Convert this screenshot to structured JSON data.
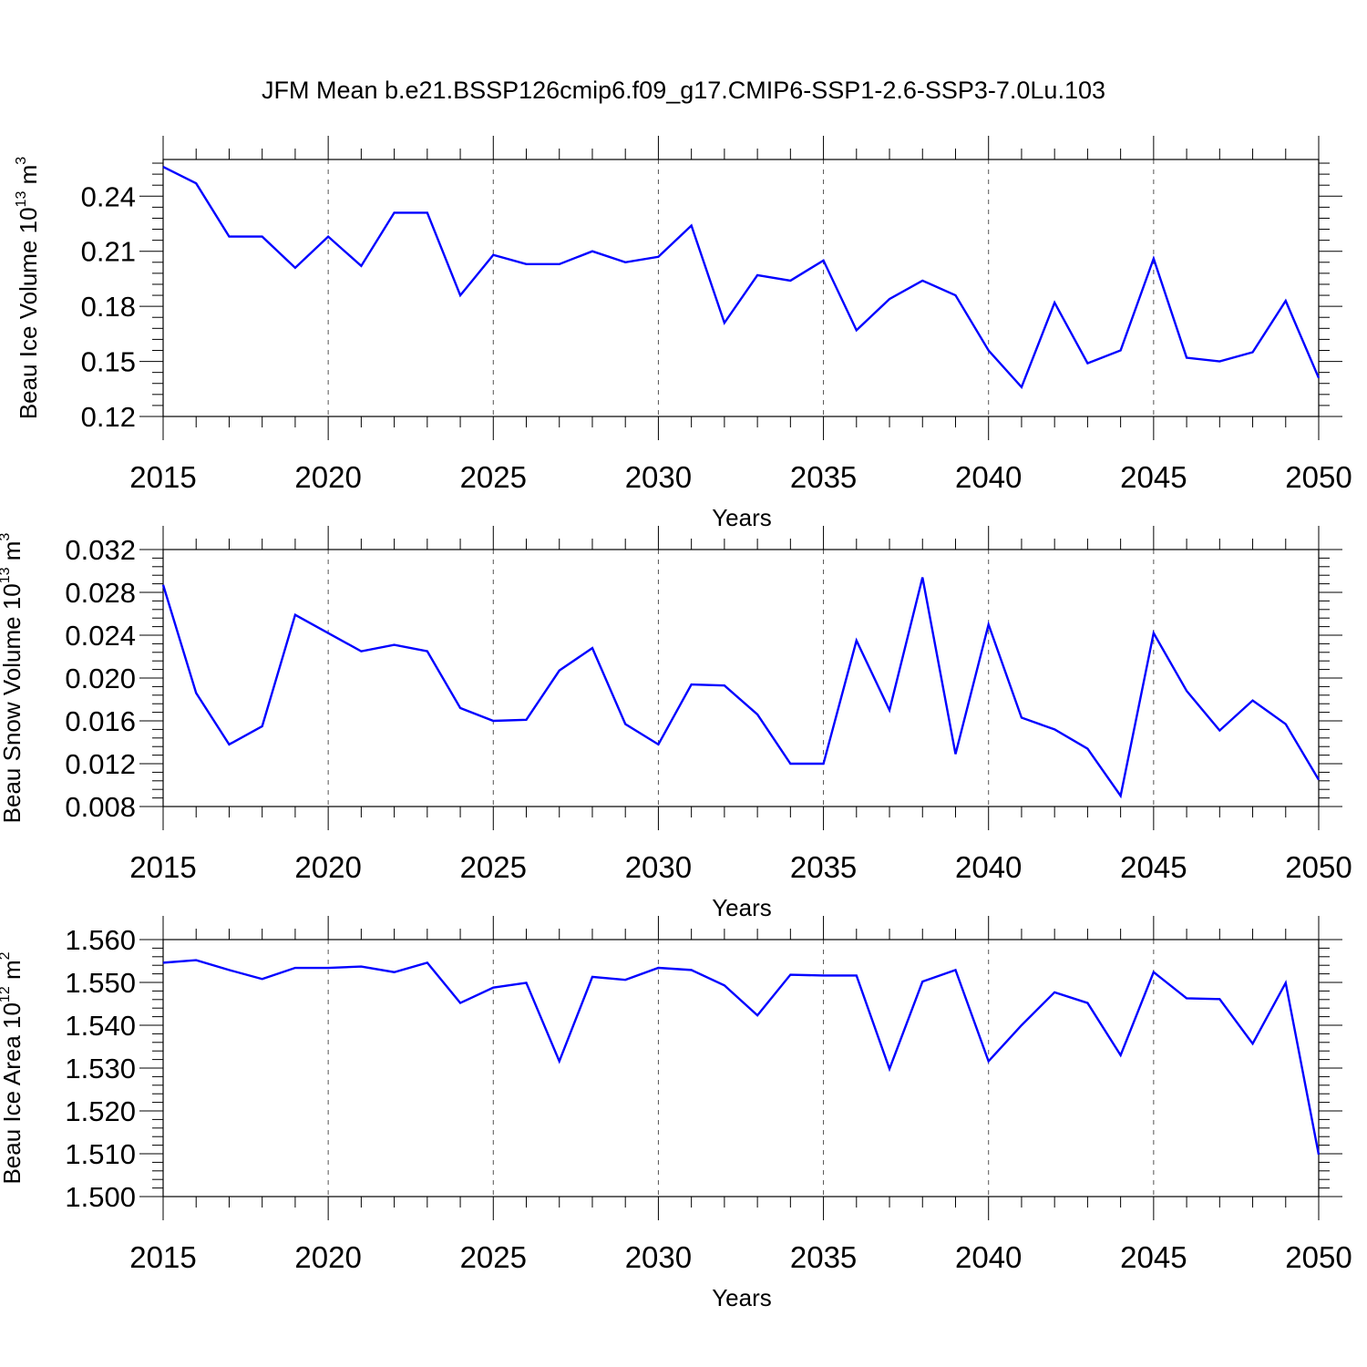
{
  "title": "JFM Mean b.e21.BSSP126cmip6.f09_g17.CMIP6-SSP1-2.6-SSP3-7.0Lu.103",
  "chart_data": [
    {
      "type": "line",
      "xlabel": "Years",
      "ylabel": {
        "text": "Beau Ice Volume 10",
        "exp": "13",
        "unit": " m",
        "unit_exp": "3"
      },
      "xlim": [
        2015,
        2050
      ],
      "ylim": [
        0.12,
        0.26
      ],
      "yticks": [
        "0.12",
        "0.15",
        "0.18",
        "0.21",
        "0.24"
      ],
      "xticks": [
        "2015",
        "2020",
        "2025",
        "2030",
        "2035",
        "2040",
        "2045",
        "2050"
      ],
      "grid": "vertical dashed at major x ticks",
      "line_color": "#0000ff",
      "series": [
        {
          "x": [
            2015,
            2016,
            2017,
            2018,
            2019,
            2020,
            2021,
            2022,
            2023,
            2024,
            2025,
            2026,
            2027,
            2028,
            2029,
            2030,
            2031,
            2032,
            2033,
            2034,
            2035,
            2036,
            2037,
            2038,
            2039,
            2040,
            2041,
            2042,
            2043,
            2044,
            2045,
            2046,
            2047,
            2048,
            2049,
            2050
          ],
          "values": [
            0.256,
            0.247,
            0.218,
            0.218,
            0.201,
            0.218,
            0.202,
            0.231,
            0.231,
            0.186,
            0.208,
            0.203,
            0.203,
            0.21,
            0.204,
            0.207,
            0.224,
            0.171,
            0.197,
            0.194,
            0.205,
            0.167,
            0.184,
            0.194,
            0.186,
            0.156,
            0.136,
            0.182,
            0.149,
            0.156,
            0.206,
            0.152,
            0.15,
            0.155,
            0.183,
            0.141
          ]
        }
      ]
    },
    {
      "type": "line",
      "xlabel": "Years",
      "ylabel": {
        "text": "Beau Snow Volume 10",
        "exp": "13",
        "unit": " m",
        "unit_exp": "3"
      },
      "xlim": [
        2015,
        2050
      ],
      "ylim": [
        0.008,
        0.032
      ],
      "yticks": [
        "0.008",
        "0.012",
        "0.016",
        "0.020",
        "0.024",
        "0.028",
        "0.032"
      ],
      "xticks": [
        "2015",
        "2020",
        "2025",
        "2030",
        "2035",
        "2040",
        "2045",
        "2050"
      ],
      "grid": "vertical dashed at major x ticks",
      "line_color": "#0000ff",
      "series": [
        {
          "x": [
            2015,
            2016,
            2017,
            2018,
            2019,
            2020,
            2021,
            2022,
            2023,
            2024,
            2025,
            2026,
            2027,
            2028,
            2029,
            2030,
            2031,
            2032,
            2033,
            2034,
            2035,
            2036,
            2037,
            2038,
            2039,
            2040,
            2041,
            2042,
            2043,
            2044,
            2045,
            2046,
            2047,
            2048,
            2049,
            2050
          ],
          "values": [
            0.0287,
            0.0186,
            0.0138,
            0.0155,
            0.0259,
            0.0242,
            0.0225,
            0.0231,
            0.0225,
            0.0172,
            0.016,
            0.0161,
            0.0207,
            0.0228,
            0.0157,
            0.0138,
            0.0194,
            0.0193,
            0.0166,
            0.012,
            0.012,
            0.0235,
            0.017,
            0.0294,
            0.0129,
            0.025,
            0.0163,
            0.0152,
            0.0134,
            0.009,
            0.0242,
            0.0188,
            0.0151,
            0.0179,
            0.0157,
            0.0105
          ]
        }
      ]
    },
    {
      "type": "line",
      "xlabel": "Years",
      "ylabel": {
        "text": "Beau Ice Area 10",
        "exp": "12",
        "unit": " m",
        "unit_exp": "2"
      },
      "xlim": [
        2015,
        2050
      ],
      "ylim": [
        1.5,
        1.56
      ],
      "yticks": [
        "1.500",
        "1.510",
        "1.520",
        "1.530",
        "1.540",
        "1.550",
        "1.560"
      ],
      "xticks": [
        "2015",
        "2020",
        "2025",
        "2030",
        "2035",
        "2040",
        "2045",
        "2050"
      ],
      "grid": "vertical dashed at major x ticks",
      "line_color": "#0000ff",
      "series": [
        {
          "x": [
            2015,
            2016,
            2017,
            2018,
            2019,
            2020,
            2021,
            2022,
            2023,
            2024,
            2025,
            2026,
            2027,
            2028,
            2029,
            2030,
            2031,
            2032,
            2033,
            2034,
            2035,
            2036,
            2037,
            2038,
            2039,
            2040,
            2041,
            2042,
            2043,
            2044,
            2045,
            2046,
            2047,
            2048,
            2049,
            2050
          ],
          "values": [
            1.5546,
            1.5552,
            1.5529,
            1.5508,
            1.5534,
            1.5534,
            1.5537,
            1.5524,
            1.5546,
            1.5452,
            1.5488,
            1.5499,
            1.5316,
            1.5513,
            1.5506,
            1.5534,
            1.5529,
            1.5493,
            1.5423,
            1.5518,
            1.5516,
            1.5516,
            1.5298,
            1.5502,
            1.5529,
            1.5316,
            1.54,
            1.5477,
            1.5452,
            1.533,
            1.5524,
            1.5463,
            1.5461,
            1.5357,
            1.5499,
            1.5098
          ]
        }
      ]
    }
  ]
}
